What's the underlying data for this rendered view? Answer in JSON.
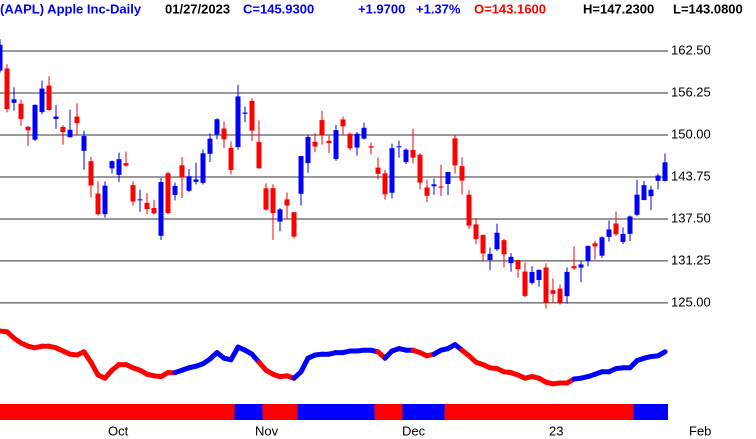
{
  "chart_data": {
    "type": "candlestick",
    "title": "(AAPL) Apple Inc-Daily",
    "header": {
      "date": "01/27/2023",
      "close": "C=145.9300",
      "change": "+1.9700",
      "change_pct": "+1.37%",
      "open": "O=143.1600",
      "high": "H=147.2300",
      "low": "L=143.0800"
    },
    "header_colors": {
      "title": "#0000ff",
      "date": "#000000",
      "close": "#0000ff",
      "change": "#0000ff",
      "change_pct": "#0000ff",
      "open": "#ff0000",
      "high": "#000000",
      "low": "#000000"
    },
    "up_color": "#0000ff",
    "down_color": "#ff0000",
    "categories": [
      null,
      null,
      null,
      null,
      null,
      null,
      null,
      null,
      null,
      null,
      null,
      null,
      null,
      null,
      null,
      "Oct",
      null,
      null,
      null,
      null,
      null,
      null,
      null,
      null,
      null,
      null,
      null,
      null,
      null,
      null,
      null,
      null,
      null,
      null,
      null,
      null,
      "Nov",
      null,
      null,
      null,
      null,
      null,
      null,
      null,
      null,
      null,
      null,
      null,
      null,
      null,
      null,
      null,
      null,
      null,
      null,
      null,
      null,
      "Dec",
      null,
      null,
      null,
      null,
      null,
      null,
      null,
      null,
      null,
      null,
      null,
      null,
      null,
      null,
      null,
      null,
      null,
      null,
      null,
      null,
      "23",
      null,
      null,
      null,
      null,
      null,
      null,
      null,
      null,
      null,
      null,
      null,
      null,
      null,
      null,
      null,
      null,
      null,
      null,
      null,
      "Feb"
    ],
    "open": [
      159.59,
      159.9,
      154.79,
      154.65,
      151.21,
      149.31,
      153.4,
      157.34,
      152.38,
      151.19,
      149.66,
      152.74,
      147.64,
      146.1,
      141.28,
      138.21,
      145.03,
      144.07,
      145.81,
      142.54,
      140.42,
      139.9,
      139.13,
      134.99,
      144.31,
      141.07,
      145.49,
      141.69,
      143.02,
      142.87,
      147.19,
      150.09,
      150.96,
      148.07,
      148.2,
      153.16,
      155.08,
      148.95,
      142.06,
      142.09,
      137.11,
      140.41,
      138.5,
      141.24,
      145.82,
      148.97,
      152.22,
      149.13,
      146.43,
      152.31,
      150.16,
      148.13,
      149.45,
      148.31,
      145.14,
      144.29,
      141.4,
      148.21,
      145.96,
      147.77,
      147.07,
      142.19,
      142.36,
      142.34,
      142.7,
      149.5,
      145.35,
      141.11,
      136.69,
      135.11,
      131.39,
      132.98,
      134.35,
      130.92,
      131.38,
      129.67,
      127.99,
      128.41,
      130.28,
      126.89,
      127.13,
      126.01,
      130.47,
      130.26,
      131.25,
      133.88,
      132.03,
      134.83,
      136.82,
      134.08,
      135.28,
      138.12,
      140.31,
      140.89,
      143.17,
      143.16,
      null,
      null,
      null
    ],
    "high": [
      164.26,
      160.54,
      157.1,
      155.24,
      151.35,
      154.56,
      158.08,
      158.74,
      154.47,
      151.47,
      153.77,
      154.72,
      150.64,
      146.72,
      143.1,
      143.07,
      146.22,
      147.38,
      147.54,
      143.1,
      141.89,
      141.35,
      140.36,
      143.59,
      144.52,
      142.9,
      146.7,
      144.95,
      145.89,
      147.85,
      150.23,
      152.49,
      151.99,
      149.05,
      157.5,
      154.24,
      155.45,
      152.17,
      142.8,
      142.67,
      139.15,
      141.43,
      138.55,
      146.87,
      150.01,
      150.28,
      153.59,
      149.87,
      151.48,
      152.7,
      150.37,
      150.42,
      151.83,
      148.88,
      146.64,
      144.81,
      148.72,
      149.13,
      148.0,
      150.92,
      147.3,
      143.37,
      143.52,
      145.57,
      144.5,
      149.97,
      146.66,
      141.8,
      137.65,
      135.2,
      133.25,
      136.81,
      134.56,
      132.42,
      131.41,
      131.03,
      130.48,
      129.95,
      130.9,
      128.66,
      127.77,
      130.29,
      133.41,
      131.26,
      133.51,
      134.26,
      134.92,
      137.29,
      138.61,
      136.25,
      138.02,
      143.32,
      143.16,
      142.43,
      144.25,
      147.23,
      null,
      null,
      null
    ],
    "low": [
      159.3,
      153.37,
      153.61,
      151.38,
      148.37,
      149.1,
      153.08,
      153.6,
      150.91,
      148.56,
      149.64,
      149.95,
      144.84,
      140.68,
      138.0,
      137.69,
      144.26,
      143.01,
      145.22,
      139.45,
      138.57,
      138.22,
      138.16,
      134.37,
      138.19,
      140.27,
      140.61,
      141.5,
      142.65,
      142.65,
      146.0,
      149.36,
      148.04,
      144.13,
      147.82,
      151.92,
      149.13,
      145.0,
      138.75,
      134.38,
      135.67,
      137.49,
      134.59,
      139.5,
      144.37,
      147.43,
      148.56,
      147.29,
      146.15,
      149.97,
      147.72,
      146.93,
      149.34,
      147.12,
      143.38,
      140.35,
      140.55,
      146.61,
      145.65,
      145.77,
      141.92,
      140.0,
      141.1,
      140.9,
      141.06,
      144.24,
      141.16,
      136.03,
      133.73,
      131.32,
      129.89,
      132.75,
      130.3,
      129.64,
      128.72,
      125.87,
      127.73,
      127.43,
      124.17,
      125.08,
      124.76,
      124.89,
      129.89,
      128.12,
      130.46,
      131.44,
      131.66,
      134.13,
      135.03,
      133.77,
      134.22,
      137.9,
      140.3,
      138.81,
      141.9,
      143.08,
      null,
      null,
      null
    ],
    "close": [
      163.43,
      153.84,
      155.31,
      152.37,
      150.7,
      154.48,
      156.9,
      153.72,
      152.74,
      150.43,
      150.77,
      151.76,
      149.84,
      142.48,
      138.2,
      142.45,
      146.1,
      146.4,
      145.43,
      140.09,
      140.42,
      138.98,
      138.34,
      142.99,
      138.38,
      142.41,
      143.75,
      143.86,
      143.39,
      147.27,
      149.45,
      152.34,
      149.35,
      144.8,
      155.74,
      153.34,
      150.65,
      145.03,
      138.88,
      138.38,
      138.92,
      139.5,
      134.87,
      146.87,
      149.7,
      148.28,
      150.04,
      148.79,
      150.72,
      151.29,
      148.01,
      150.18,
      151.07,
      148.11,
      144.22,
      141.17,
      148.03,
      148.31,
      147.81,
      146.63,
      142.91,
      140.94,
      142.65,
      142.16,
      144.49,
      145.47,
      143.21,
      136.5,
      134.51,
      132.37,
      132.3,
      135.45,
      132.23,
      131.86,
      130.03,
      126.04,
      129.61,
      129.93,
      125.07,
      126.36,
      125.02,
      129.62,
      130.15,
      130.73,
      133.49,
      133.41,
      134.76,
      135.94,
      135.21,
      135.27,
      137.87,
      141.11,
      142.53,
      141.86,
      143.96,
      145.93,
      null,
      null,
      null
    ],
    "ylim": [
      123.5,
      167.5
    ],
    "yticks": [
      {
        "value": 162.5,
        "label": "162.50"
      },
      156.25,
      {
        "value": 150,
        "label": "150.00"
      },
      143.75,
      {
        "value": 137.5,
        "label": "137.50"
      },
      131.25,
      {
        "value": 125,
        "label": "125.00"
      }
    ],
    "grid": true,
    "grid_color": "#333333",
    "indicator": {
      "ylim": [
        0,
        100
      ],
      "values": [
        80,
        79,
        71,
        65,
        61,
        59,
        61,
        61,
        59,
        55,
        51,
        50,
        54,
        41,
        25,
        21,
        31,
        38,
        38,
        34,
        31,
        26,
        24,
        23,
        28,
        28,
        31,
        34,
        36,
        39,
        45,
        53,
        46,
        44,
        60,
        56,
        51,
        41,
        31,
        26,
        23,
        24,
        21,
        29,
        46,
        50,
        51,
        51,
        53,
        53,
        55,
        55,
        56,
        56,
        54,
        46,
        55,
        58,
        56,
        56,
        53,
        49,
        51,
        56,
        58,
        63,
        56,
        49,
        41,
        38,
        34,
        33,
        29,
        28,
        25,
        21,
        23,
        21,
        16,
        14,
        15,
        15,
        20,
        21,
        23,
        26,
        29,
        29,
        33,
        34,
        34,
        43,
        46,
        48,
        49,
        54
      ],
      "colors": [
        "red",
        "red",
        "red",
        "red",
        "red",
        "red",
        "red",
        "red",
        "red",
        "red",
        "red",
        "red",
        "red",
        "red",
        "red",
        "red",
        "red",
        "red",
        "red",
        "red",
        "red",
        "red",
        "red",
        "red",
        "red",
        "red",
        "blue",
        "blue",
        "blue",
        "blue",
        "blue",
        "blue",
        "blue",
        "blue",
        "blue",
        "blue",
        "blue",
        "blue",
        "red",
        "red",
        "red",
        "red",
        "red",
        "blue",
        "blue",
        "blue",
        "blue",
        "blue",
        "blue",
        "blue",
        "blue",
        "blue",
        "blue",
        "blue",
        "blue",
        "red",
        "blue",
        "blue",
        "blue",
        "blue",
        "red",
        "red",
        "red",
        "blue",
        "blue",
        "blue",
        "blue",
        "red",
        "red",
        "red",
        "red",
        "red",
        "red",
        "red",
        "red",
        "red",
        "red",
        "red",
        "red",
        "red",
        "red",
        "red",
        "red",
        "blue",
        "blue",
        "blue",
        "blue",
        "blue",
        "blue",
        "blue",
        "blue",
        "blue",
        "blue",
        "blue",
        "blue",
        "blue"
      ]
    },
    "strip_colors": [
      "red",
      "red",
      "red",
      "red",
      "red",
      "red",
      "red",
      "red",
      "red",
      "red",
      "red",
      "red",
      "red",
      "red",
      "red",
      "red",
      "red",
      "red",
      "red",
      "red",
      "red",
      "red",
      "red",
      "red",
      "red",
      "red",
      "red",
      "red",
      "red",
      "red",
      "red",
      "red",
      "red",
      "red",
      "blue",
      "blue",
      "blue",
      "blue",
      "red",
      "red",
      "red",
      "red",
      "red",
      "blue",
      "blue",
      "blue",
      "blue",
      "blue",
      "blue",
      "blue",
      "blue",
      "blue",
      "blue",
      "blue",
      "red",
      "red",
      "red",
      "red",
      "blue",
      "blue",
      "blue",
      "blue",
      "blue",
      "blue",
      "red",
      "red",
      "red",
      "red",
      "red",
      "red",
      "red",
      "red",
      "red",
      "red",
      "red",
      "red",
      "red",
      "red",
      "red",
      "red",
      "red",
      "red",
      "red",
      "red",
      "red",
      "red",
      "red",
      "red",
      "red",
      "red",
      "red",
      "blue",
      "blue",
      "blue",
      "blue",
      "blue"
    ]
  }
}
